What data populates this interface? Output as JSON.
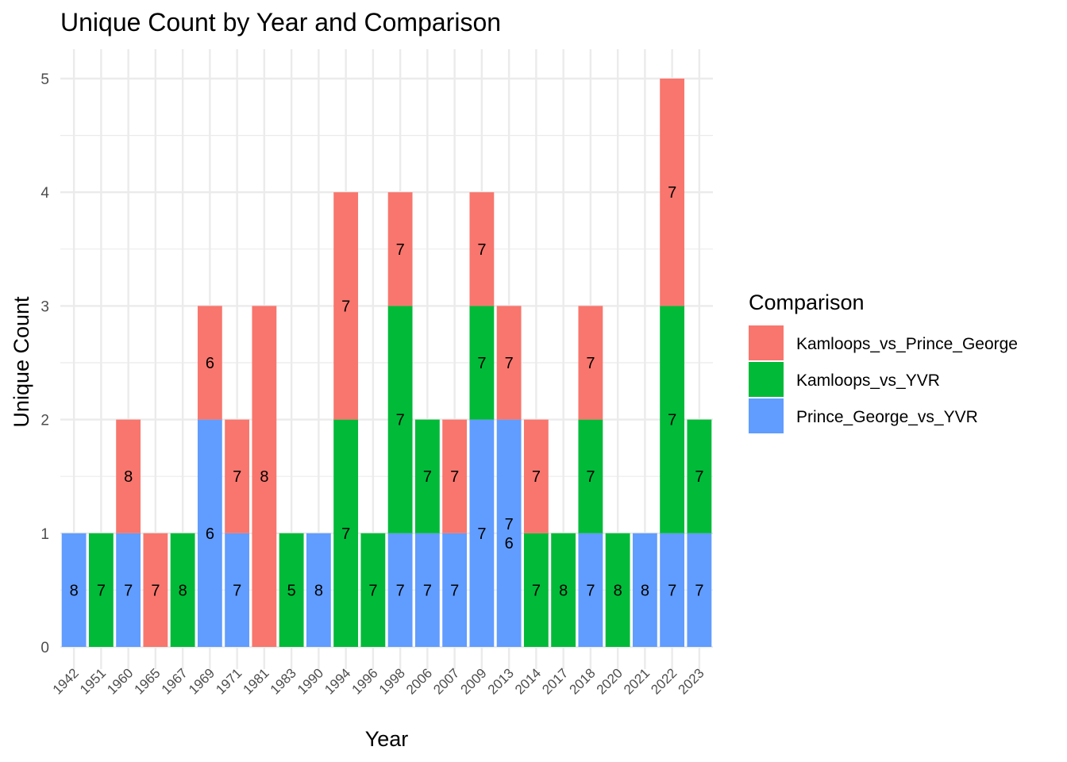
{
  "chart_data": {
    "type": "bar",
    "stacked": true,
    "title": "Unique Count by Year and Comparison",
    "xlabel": "Year",
    "ylabel": "Unique Count",
    "ylim": [
      0,
      5.25
    ],
    "yticks": [
      0,
      1,
      2,
      3,
      4,
      5
    ],
    "grid": true,
    "legend": {
      "title": "Comparison",
      "placement": "right"
    },
    "categories": [
      "1942",
      "1951",
      "1960",
      "1965",
      "1967",
      "1969",
      "1971",
      "1981",
      "1983",
      "1990",
      "1994",
      "1996",
      "1998",
      "2006",
      "2007",
      "2009",
      "2013",
      "2014",
      "2017",
      "2018",
      "2020",
      "2021",
      "2022",
      "2023"
    ],
    "series": [
      {
        "name": "Prince_George_vs_YVR",
        "color": "#619CFF",
        "values": [
          1,
          0,
          1,
          0,
          0,
          2,
          1,
          0,
          0,
          1,
          0,
          0,
          1,
          1,
          1,
          2,
          2,
          0,
          0,
          1,
          0,
          1,
          1,
          1
        ],
        "labels": [
          "8",
          "",
          "7",
          "",
          "",
          "6",
          "7",
          "",
          "",
          "8",
          "",
          "",
          "7",
          "7",
          "7",
          "7",
          "7\n6",
          "",
          "",
          "7",
          "",
          "8",
          "7",
          "7"
        ]
      },
      {
        "name": "Kamloops_vs_YVR",
        "color": "#00BA38",
        "values": [
          0,
          1,
          0,
          0,
          1,
          0,
          0,
          0,
          1,
          0,
          2,
          1,
          2,
          1,
          0,
          1,
          0,
          1,
          1,
          1,
          1,
          0,
          2,
          1
        ],
        "labels": [
          "",
          "7",
          "",
          "",
          "8",
          "",
          "",
          "",
          "5",
          "",
          "7",
          "7",
          "7",
          "7",
          "",
          "7",
          "",
          "7",
          "8",
          "7",
          "8",
          "",
          "7",
          "7"
        ]
      },
      {
        "name": "Kamloops_vs_Prince_George",
        "color": "#F8766D",
        "values": [
          0,
          0,
          1,
          1,
          0,
          1,
          1,
          3,
          0,
          0,
          2,
          0,
          1,
          0,
          1,
          1,
          1,
          1,
          0,
          1,
          0,
          0,
          2,
          0
        ],
        "labels": [
          "",
          "",
          "8",
          "7",
          "",
          "6",
          "7",
          "8",
          "",
          "",
          "7",
          "",
          "7",
          "",
          "7",
          "7",
          "7",
          "7",
          "",
          "7",
          "",
          "",
          "7",
          ""
        ]
      }
    ],
    "legend_order": [
      "Kamloops_vs_Prince_George",
      "Kamloops_vs_YVR",
      "Prince_George_vs_YVR"
    ]
  }
}
